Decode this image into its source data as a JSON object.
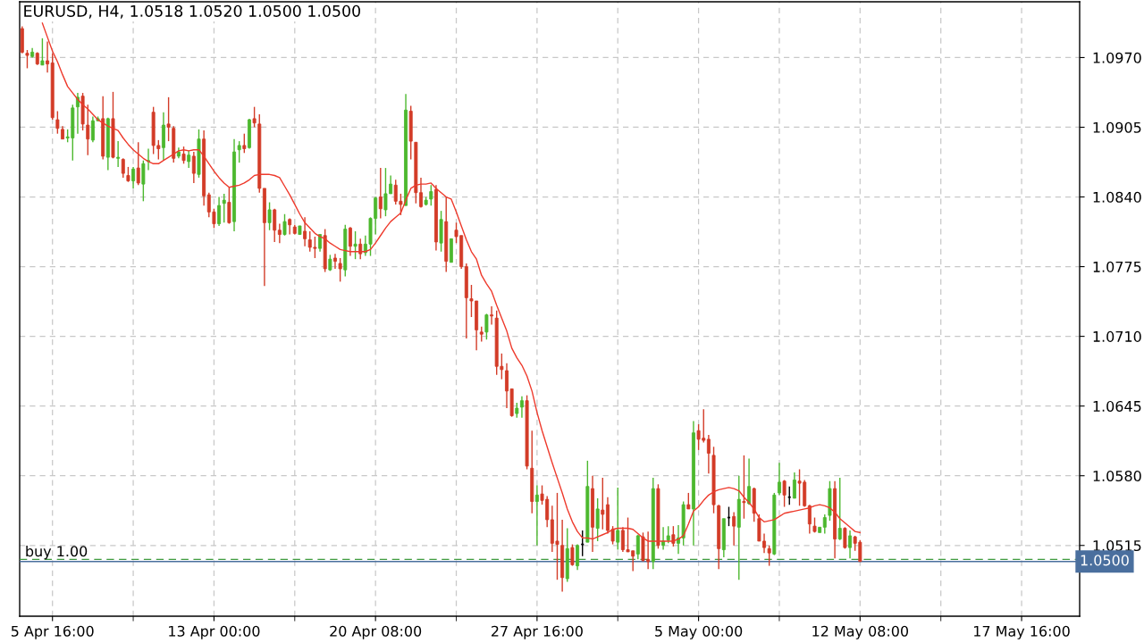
{
  "chart_data": {
    "type": "candlestick",
    "title": "EURUSD, H4, 1.0518 1.0520 1.0500 1.0500",
    "categories": [
      null,
      null,
      null,
      null,
      null,
      null,
      "5 Apr 16:00",
      null,
      null,
      null,
      null,
      null,
      null,
      null,
      null,
      null,
      null,
      null,
      null,
      null,
      null,
      null,
      null,
      null,
      null,
      null,
      null,
      null,
      null,
      null,
      null,
      null,
      null,
      null,
      null,
      null,
      null,
      null,
      "13 Apr 00:00",
      null,
      null,
      null,
      null,
      null,
      null,
      null,
      null,
      null,
      null,
      null,
      null,
      null,
      null,
      null,
      null,
      null,
      null,
      null,
      null,
      null,
      null,
      null,
      null,
      null,
      null,
      null,
      null,
      null,
      null,
      null,
      "20 Apr 08:00",
      null,
      null,
      null,
      null,
      null,
      null,
      null,
      null,
      null,
      null,
      null,
      null,
      null,
      null,
      null,
      null,
      null,
      null,
      null,
      null,
      null,
      null,
      null,
      null,
      null,
      null,
      null,
      null,
      null,
      null,
      null,
      "27 Apr 16:00",
      null,
      null,
      null,
      null,
      null,
      null,
      null,
      null,
      null,
      null,
      null,
      null,
      null,
      null,
      null,
      null,
      null,
      null,
      null,
      null,
      null,
      null,
      null,
      null,
      null,
      null,
      null,
      null,
      null,
      null,
      null,
      "5 May 00:00",
      null,
      null,
      null,
      null,
      null,
      null,
      null,
      null,
      null,
      null,
      null,
      null,
      null,
      null,
      null,
      null,
      null,
      null,
      null,
      null,
      null,
      null,
      null,
      null,
      null,
      null,
      null,
      null,
      null,
      null,
      null,
      "12 May 08:00",
      null,
      null,
      null,
      null,
      null,
      null,
      null,
      null,
      null,
      null,
      null,
      null,
      null,
      null,
      null,
      null,
      null,
      null,
      null,
      null,
      null,
      null,
      null,
      null,
      null,
      null,
      null,
      null,
      null,
      null,
      null,
      "17 May 16:00",
      null,
      null,
      null,
      null,
      null,
      null,
      null,
      null,
      null,
      null,
      null
    ],
    "ohlc": [
      [
        1.0997,
        1.0999,
        1.0974,
        1.0975
      ],
      [
        1.0974,
        1.0977,
        1.096,
        1.0972
      ],
      [
        1.0971,
        1.0979,
        1.097,
        1.0975
      ],
      [
        1.0974,
        1.0975,
        1.0963,
        1.0964
      ],
      [
        1.0963,
        1.0988,
        1.0963,
        1.0967
      ],
      [
        1.0967,
        1.0985,
        1.0956,
        1.0964
      ],
      [
        1.0965,
        1.0974,
        1.0912,
        1.0914
      ],
      [
        1.0912,
        1.092,
        1.0899,
        1.0904
      ],
      [
        1.0903,
        1.0906,
        1.0894,
        1.0894
      ],
      [
        1.0895,
        1.0903,
        1.0891,
        1.0896
      ],
      [
        1.0895,
        1.0926,
        1.0874,
        1.0923
      ],
      [
        1.0924,
        1.0937,
        1.0899,
        1.0933
      ],
      [
        1.0934,
        1.0937,
        1.0902,
        1.0908
      ],
      [
        1.0907,
        1.0926,
        1.0879,
        1.0894
      ],
      [
        1.0893,
        1.0915,
        1.0891,
        1.0911
      ],
      [
        1.0911,
        1.0915,
        1.0911,
        1.0913
      ],
      [
        1.0913,
        1.0934,
        1.0875,
        1.0878
      ],
      [
        1.0877,
        1.0914,
        1.0865,
        1.0913
      ],
      [
        1.0913,
        1.0938,
        1.0876,
        1.0877
      ],
      [
        1.0876,
        1.0892,
        1.0868,
        1.0877
      ],
      [
        1.0875,
        1.0876,
        1.0858,
        1.0862
      ],
      [
        1.086,
        1.0868,
        1.0854,
        1.0855
      ],
      [
        1.0855,
        1.0868,
        1.0848,
        1.0866
      ],
      [
        1.0867,
        1.0891,
        1.0851,
        1.0853
      ],
      [
        1.0852,
        1.0874,
        1.0836,
        1.0871
      ],
      [
        1.0873,
        1.0885,
        1.0865,
        1.0874
      ],
      [
        1.0919,
        1.0924,
        1.088,
        1.0888
      ],
      [
        1.0888,
        1.0893,
        1.0875,
        1.0885
      ],
      [
        1.0886,
        1.0919,
        1.0874,
        1.0907
      ],
      [
        1.0908,
        1.0933,
        1.0892,
        1.0905
      ],
      [
        1.0904,
        1.0906,
        1.0872,
        1.0876
      ],
      [
        1.0878,
        1.0886,
        1.0876,
        1.0882
      ],
      [
        1.088,
        1.0887,
        1.0871,
        1.0874
      ],
      [
        1.0873,
        1.0883,
        1.0867,
        1.0879
      ],
      [
        1.0878,
        1.0882,
        1.0853,
        1.0862
      ],
      [
        1.0861,
        1.0903,
        1.0858,
        1.0894
      ],
      [
        1.0894,
        1.0902,
        1.0832,
        1.0841
      ],
      [
        1.0842,
        1.0844,
        1.0821,
        1.0826
      ],
      [
        1.0826,
        1.0829,
        1.0811,
        1.0815
      ],
      [
        1.0815,
        1.084,
        1.0813,
        1.0832
      ],
      [
        1.0834,
        1.0843,
        1.0816,
        1.0837
      ],
      [
        1.0835,
        1.0849,
        1.0815,
        1.0816
      ],
      [
        1.0817,
        1.0894,
        1.0808,
        1.0882
      ],
      [
        1.0884,
        1.0892,
        1.0872,
        1.0888
      ],
      [
        1.0888,
        1.0899,
        1.0881,
        1.0885
      ],
      [
        1.0886,
        1.0913,
        1.0885,
        1.0912
      ],
      [
        1.0913,
        1.0924,
        1.0905,
        1.0909
      ],
      [
        1.0908,
        1.0917,
        1.0844,
        1.0848
      ],
      [
        1.0848,
        1.0848,
        1.0757,
        1.0816
      ],
      [
        1.0816,
        1.0835,
        1.0809,
        1.0828
      ],
      [
        1.0828,
        1.0829,
        1.0798,
        1.0809
      ],
      [
        1.0809,
        1.0815,
        1.0797,
        1.0805
      ],
      [
        1.0805,
        1.0824,
        1.0804,
        1.0817
      ],
      [
        1.0819,
        1.082,
        1.0805,
        1.0814
      ],
      [
        1.0812,
        1.0814,
        1.0805,
        1.0806
      ],
      [
        1.0805,
        1.0813,
        1.0805,
        1.0813
      ],
      [
        1.0808,
        1.0821,
        1.0794,
        1.0801
      ],
      [
        1.08,
        1.0808,
        1.0789,
        1.0793
      ],
      [
        1.0793,
        1.0803,
        1.0783,
        1.0792
      ],
      [
        1.0792,
        1.0805,
        1.0789,
        1.0805
      ],
      [
        1.0804,
        1.081,
        1.077,
        1.0773
      ],
      [
        1.0772,
        1.0786,
        1.0771,
        1.0782
      ],
      [
        1.0783,
        1.0787,
        1.0773,
        1.078
      ],
      [
        1.0778,
        1.0783,
        1.0761,
        1.0773
      ],
      [
        1.0772,
        1.0814,
        1.0766,
        1.081
      ],
      [
        1.0811,
        1.0812,
        1.0785,
        1.0794
      ],
      [
        1.0794,
        1.0808,
        1.0782,
        1.0796
      ],
      [
        1.0796,
        1.0801,
        1.0782,
        1.0787
      ],
      [
        1.0788,
        1.0804,
        1.0785,
        1.0796
      ],
      [
        1.0796,
        1.0821,
        1.0785,
        1.082
      ],
      [
        1.082,
        1.084,
        1.0805,
        1.0839
      ],
      [
        1.084,
        1.0867,
        1.082,
        1.0829
      ],
      [
        1.0828,
        1.0867,
        1.0822,
        1.0843
      ],
      [
        1.0843,
        1.086,
        1.0843,
        1.0852
      ],
      [
        1.0851,
        1.0856,
        1.0833,
        1.0836
      ],
      [
        1.0836,
        1.0843,
        1.0823,
        1.0833
      ],
      [
        1.0832,
        1.0936,
        1.0832,
        1.0921
      ],
      [
        1.092,
        1.0925,
        1.0875,
        1.0892
      ],
      [
        1.0891,
        1.0891,
        1.0834,
        1.0844
      ],
      [
        1.0844,
        1.0858,
        1.083,
        1.0831
      ],
      [
        1.0833,
        1.084,
        1.0832,
        1.0837
      ],
      [
        1.0838,
        1.0851,
        1.0832,
        1.0845
      ],
      [
        1.0847,
        1.0851,
        1.079,
        1.0798
      ],
      [
        1.0797,
        1.0827,
        1.0789,
        1.0819
      ],
      [
        1.0817,
        1.084,
        1.077,
        1.078
      ],
      [
        1.0779,
        1.0801,
        1.0779,
        1.0801
      ],
      [
        1.0809,
        1.0816,
        1.0797,
        1.0803
      ],
      [
        1.0804,
        1.0804,
        1.0773,
        1.0775
      ],
      [
        1.0775,
        1.0778,
        1.0708,
        1.0746
      ],
      [
        1.0745,
        1.0758,
        1.0728,
        1.0743
      ],
      [
        1.0743,
        1.0743,
        1.0697,
        1.0716
      ],
      [
        1.0714,
        1.0719,
        1.0705,
        1.0712
      ],
      [
        1.0714,
        1.0731,
        1.0707,
        1.073
      ],
      [
        1.073,
        1.0738,
        1.0721,
        1.0729
      ],
      [
        1.0727,
        1.0734,
        1.0674,
        1.0682
      ],
      [
        1.0682,
        1.0694,
        1.067,
        1.0679
      ],
      [
        1.0678,
        1.0685,
        1.0643,
        1.0659
      ],
      [
        1.0661,
        1.0661,
        1.0635,
        1.0636
      ],
      [
        1.0638,
        1.0648,
        1.0634,
        1.0643
      ],
      [
        1.0644,
        1.0654,
        1.0634,
        1.065
      ],
      [
        1.065,
        1.0655,
        1.0586,
        1.0589
      ],
      [
        1.0587,
        1.0622,
        1.0545,
        1.0556
      ],
      [
        1.0556,
        1.0571,
        1.0515,
        1.0562
      ],
      [
        1.0563,
        1.0571,
        1.0553,
        1.0557
      ],
      [
        1.0558,
        1.0561,
        1.0532,
        1.0539
      ],
      [
        1.0539,
        1.0552,
        1.0509,
        1.0517
      ],
      [
        1.0519,
        1.0564,
        1.0483,
        1.0516
      ],
      [
        1.0515,
        1.0539,
        1.0472,
        1.0485
      ],
      [
        1.0484,
        1.0531,
        1.0481,
        1.0512
      ],
      [
        1.0513,
        1.0516,
        1.0496,
        1.0497
      ],
      [
        1.0496,
        1.0516,
        1.0492,
        1.0515
      ],
      [
        1.0516,
        1.0529,
        1.0505,
        1.0516
      ],
      [
        1.0518,
        1.0594,
        1.0518,
        1.057
      ],
      [
        1.0568,
        1.058,
        1.0509,
        1.0532
      ],
      [
        1.0531,
        1.0559,
        1.0519,
        1.0549
      ],
      [
        1.0548,
        1.0578,
        1.053,
        1.0544
      ],
      [
        1.0553,
        1.056,
        1.0526,
        1.0529
      ],
      [
        1.053,
        1.0533,
        1.0516,
        1.0519
      ],
      [
        1.0518,
        1.0569,
        1.0511,
        1.0529
      ],
      [
        1.0529,
        1.0532,
        1.0509,
        1.0511
      ],
      [
        1.0511,
        1.0541,
        1.0509,
        1.0509
      ],
      [
        1.051,
        1.051,
        1.0491,
        1.0505
      ],
      [
        1.0507,
        1.0525,
        1.0502,
        1.0524
      ],
      [
        1.0523,
        1.0527,
        1.05,
        1.0501
      ],
      [
        1.0502,
        1.0528,
        1.0493,
        1.05
      ],
      [
        1.05,
        1.0578,
        1.0493,
        1.0568
      ],
      [
        1.0568,
        1.0572,
        1.0512,
        1.0515
      ],
      [
        1.0515,
        1.0532,
        1.0511,
        1.0519
      ],
      [
        1.052,
        1.0533,
        1.0517,
        1.0524
      ],
      [
        1.0525,
        1.0533,
        1.0514,
        1.0517
      ],
      [
        1.0517,
        1.0534,
        1.0507,
        1.0522
      ],
      [
        1.0522,
        1.0556,
        1.0515,
        1.0553
      ],
      [
        1.0553,
        1.0564,
        1.0549,
        1.0549
      ],
      [
        1.0549,
        1.0631,
        1.0515,
        1.062
      ],
      [
        1.0622,
        1.0628,
        1.0604,
        1.0614
      ],
      [
        1.0615,
        1.0642,
        1.0611,
        1.0613
      ],
      [
        1.0614,
        1.0618,
        1.0582,
        1.0601
      ],
      [
        1.0599,
        1.0607,
        1.0545,
        1.0553
      ],
      [
        1.0552,
        1.0553,
        1.0493,
        1.0512
      ],
      [
        1.0511,
        1.054,
        1.0504,
        1.054
      ],
      [
        1.0541,
        1.0551,
        1.0533,
        1.0541
      ],
      [
        1.0542,
        1.0546,
        1.0515,
        1.0533
      ],
      [
        1.0532,
        1.058,
        1.0483,
        1.0558
      ],
      [
        1.0556,
        1.0599,
        1.054,
        1.0555
      ],
      [
        1.0554,
        1.0596,
        1.0553,
        1.057
      ],
      [
        1.0568,
        1.0569,
        1.0537,
        1.0545
      ],
      [
        1.054,
        1.0544,
        1.0519,
        1.0519
      ],
      [
        1.0519,
        1.0526,
        1.0508,
        1.0513
      ],
      [
        1.0512,
        1.0515,
        1.0496,
        1.0508
      ],
      [
        1.0507,
        1.0564,
        1.0506,
        1.0562
      ],
      [
        1.0564,
        1.0592,
        1.0562,
        1.0574
      ],
      [
        1.0575,
        1.0576,
        1.0551,
        1.0562
      ],
      [
        1.056,
        1.057,
        1.0553,
        1.056
      ],
      [
        1.0559,
        1.0583,
        1.0559,
        1.0576
      ],
      [
        1.0575,
        1.0586,
        1.0552,
        1.0573
      ],
      [
        1.0574,
        1.0576,
        1.0551,
        1.0552
      ],
      [
        1.0552,
        1.0553,
        1.0526,
        1.0535
      ],
      [
        1.0533,
        1.0541,
        1.0527,
        1.0528
      ],
      [
        1.0527,
        1.0532,
        1.0527,
        1.0532
      ],
      [
        1.0532,
        1.0544,
        1.0526,
        1.0541
      ],
      [
        1.0543,
        1.0575,
        1.0538,
        1.0568
      ],
      [
        1.0568,
        1.0575,
        1.0503,
        1.0521
      ],
      [
        1.0521,
        1.0578,
        1.052,
        1.0531
      ],
      [
        1.0531,
        1.0532,
        1.0512,
        1.0513
      ],
      [
        1.0513,
        1.0529,
        1.0503,
        1.0524
      ],
      [
        1.0523,
        1.0524,
        1.051,
        1.0517
      ],
      [
        1.0518,
        1.052,
        1.05,
        1.05
      ],
      null,
      null,
      null,
      null,
      null,
      null,
      null,
      null,
      null,
      null,
      null,
      null,
      null,
      null,
      null,
      null,
      null,
      null,
      null,
      null,
      null,
      null,
      null,
      null,
      null,
      null,
      null,
      null,
      null,
      null,
      null,
      null,
      null,
      null,
      null,
      null,
      null,
      null,
      null,
      null,
      null,
      null,
      null
    ],
    "colors": [
      "#d33b27",
      "#d33b27",
      "#4cb82e",
      "#d33b27",
      "#4cb82e",
      "#d33b27",
      "#d33b27",
      "#d33b27",
      "#d33b27",
      "#4cb82e",
      "#4cb82e",
      "#4cb82e",
      "#d33b27",
      "#d33b27",
      "#4cb82e",
      "#4cb82e",
      "#d33b27",
      "#4cb82e",
      "#d33b27",
      "#4cb82e",
      "#d33b27",
      "#d33b27",
      "#4cb82e",
      "#d33b27",
      "#4cb82e",
      "#4cb82e",
      "#d33b27",
      "#d33b27",
      "#4cb82e",
      "#d33b27",
      "#d33b27",
      "#4cb82e",
      "#d33b27",
      "#4cb82e",
      "#d33b27",
      "#4cb82e",
      "#d33b27",
      "#d33b27",
      "#d33b27",
      "#4cb82e",
      "#4cb82e",
      "#d33b27",
      "#4cb82e",
      "#4cb82e",
      "#d33b27",
      "#4cb82e",
      "#d33b27",
      "#d33b27",
      "#d33b27",
      "#4cb82e",
      "#d33b27",
      "#d33b27",
      "#4cb82e",
      "#d33b27",
      "#d33b27",
      "#4cb82e",
      "#d33b27",
      "#d33b27",
      "#d33b27",
      "#4cb82e",
      "#d33b27",
      "#4cb82e",
      "#d33b27",
      "#d33b27",
      "#4cb82e",
      "#d33b27",
      "#4cb82e",
      "#d33b27",
      "#4cb82e",
      "#4cb82e",
      "#4cb82e",
      "#d33b27",
      "#4cb82e",
      "#4cb82e",
      "#d33b27",
      "#d33b27",
      "#4cb82e",
      "#d33b27",
      "#d33b27",
      "#d33b27",
      "#4cb82e",
      "#4cb82e",
      "#d33b27",
      "#4cb82e",
      "#d33b27",
      "#4cb82e",
      "#d33b27",
      "#d33b27",
      "#d33b27",
      "#d33b27",
      "#d33b27",
      "#d33b27",
      "#4cb82e",
      "#d33b27",
      "#d33b27",
      "#d33b27",
      "#d33b27",
      "#d33b27",
      "#4cb82e",
      "#4cb82e",
      "#d33b27",
      "#d33b27",
      "#4cb82e",
      "#d33b27",
      "#d33b27",
      "#d33b27",
      "#d33b27",
      "#d33b27",
      "#4cb82e",
      "#d33b27",
      "#4cb82e",
      "#000000",
      "#4cb82e",
      "#d33b27",
      "#4cb82e",
      "#d33b27",
      "#d33b27",
      "#d33b27",
      "#4cb82e",
      "#d33b27",
      "#d33b27",
      "#d33b27",
      "#4cb82e",
      "#d33b27",
      "#d33b27",
      "#4cb82e",
      "#d33b27",
      "#4cb82e",
      "#4cb82e",
      "#d33b27",
      "#4cb82e",
      "#4cb82e",
      "#d33b27",
      "#4cb82e",
      "#d33b27",
      "#d33b27",
      "#d33b27",
      "#d33b27",
      "#d33b27",
      "#4cb82e",
      "#000000",
      "#d33b27",
      "#4cb82e",
      "#d33b27",
      "#4cb82e",
      "#d33b27",
      "#d33b27",
      "#d33b27",
      "#d33b27",
      "#4cb82e",
      "#4cb82e",
      "#d33b27",
      "#000000",
      "#4cb82e",
      "#d33b27",
      "#d33b27",
      "#d33b27",
      "#d33b27",
      "#4cb82e",
      "#4cb82e",
      "#4cb82e",
      "#d33b27",
      "#4cb82e",
      "#d33b27",
      "#4cb82e",
      "#d33b27",
      "#d33b27",
      null,
      null,
      null,
      null,
      null,
      null,
      null,
      null,
      null,
      null,
      null,
      null,
      null,
      null,
      null,
      null,
      null,
      null,
      null,
      null,
      null,
      null,
      null,
      null,
      null,
      null,
      null,
      null,
      null,
      null,
      null,
      null,
      null,
      null,
      null,
      null,
      null,
      null,
      null,
      null,
      null,
      null,
      null
    ],
    "series": [
      {
        "type": "line",
        "color": "#ee3a2c",
        "values": [
          null,
          null,
          null,
          null,
          1.1002,
          1.0989,
          1.0976,
          1.0966,
          1.0954,
          1.0943,
          1.0937,
          1.0931,
          1.0926,
          1.0922,
          1.0917,
          1.0912,
          1.0909,
          1.0906,
          1.0904,
          1.0902,
          1.0895,
          1.0889,
          1.0884,
          1.088,
          1.0876,
          1.0873,
          1.0871,
          1.0871,
          1.0874,
          1.0877,
          1.088,
          1.0883,
          1.0884,
          1.0883,
          1.0884,
          1.0884,
          1.0878,
          1.0871,
          1.0864,
          1.0858,
          1.0853,
          1.0849,
          1.085,
          1.0851,
          1.0853,
          1.0856,
          1.086,
          1.0861,
          1.0861,
          1.0861,
          1.086,
          1.0858,
          1.085,
          1.0842,
          1.0833,
          1.0824,
          1.0816,
          1.0811,
          1.0806,
          1.0803,
          1.0801,
          1.0797,
          1.0794,
          1.0791,
          1.079,
          1.0789,
          1.0789,
          1.0789,
          1.0789,
          1.0791,
          1.0797,
          1.0804,
          1.0811,
          1.0817,
          1.0821,
          1.0825,
          1.0837,
          1.0848,
          1.0851,
          1.0852,
          1.0852,
          1.0853,
          1.0848,
          1.0844,
          1.084,
          1.0838,
          1.0826,
          1.0813,
          1.08,
          1.0789,
          1.0782,
          1.0767,
          1.0759,
          1.0752,
          1.0739,
          1.0727,
          1.0715,
          1.0699,
          1.069,
          1.0683,
          1.0673,
          1.0659,
          1.0639,
          1.0622,
          1.0607,
          1.0592,
          1.0578,
          1.0564,
          1.0549,
          1.0537,
          1.0528,
          1.0522,
          1.0522,
          1.0521,
          1.0523,
          1.0525,
          1.0527,
          1.053,
          1.0531,
          1.0531,
          1.0531,
          1.053,
          1.0526,
          1.0522,
          1.0519,
          1.0519,
          1.0519,
          1.0519,
          1.0519,
          1.0519,
          1.0521,
          1.0524,
          1.0535,
          1.0547,
          1.0551,
          1.0557,
          1.0562,
          1.0565,
          1.0567,
          1.0568,
          1.0569,
          1.0568,
          1.0566,
          1.056,
          1.0555,
          1.0549,
          1.0541,
          1.0537,
          1.0538,
          1.0539,
          1.0542,
          1.0545,
          1.0546,
          1.0547,
          1.0548,
          1.0549,
          1.055,
          1.0552,
          1.0553,
          1.0552,
          1.055,
          1.0546,
          1.054,
          1.0536,
          1.0532,
          1.0528,
          1.0527,
          null,
          null,
          null,
          null,
          null,
          null,
          null,
          null,
          null,
          null,
          null,
          null,
          null,
          null,
          null,
          null,
          null,
          null,
          null,
          null,
          null,
          null,
          null,
          null,
          null,
          null,
          null,
          null,
          null,
          null,
          null,
          null,
          null,
          null,
          null,
          null,
          null,
          null,
          null,
          null,
          null,
          null,
          null
        ]
      }
    ],
    "ylim": [
      1.0449,
      1.1022
    ],
    "yticks": [
      1.0515,
      {
        "value": 1.058,
        "label": "1.0580"
      },
      1.0645,
      {
        "value": 1.071,
        "label": "1.0710"
      },
      1.0775,
      {
        "value": 1.084,
        "label": "1.0840"
      },
      1.0905,
      {
        "value": 1.097,
        "label": "1.0970"
      }
    ],
    "grid": true,
    "ref_lines": [
      {
        "axis": "y",
        "value": 1.0502,
        "label": "buy 1.00",
        "color": "#3e9a3e",
        "line_style": "dashed"
      },
      {
        "axis": "y",
        "value": 1.05,
        "label": "1.0500",
        "color": "#4a6f9e",
        "line_style": "solid"
      }
    ]
  }
}
